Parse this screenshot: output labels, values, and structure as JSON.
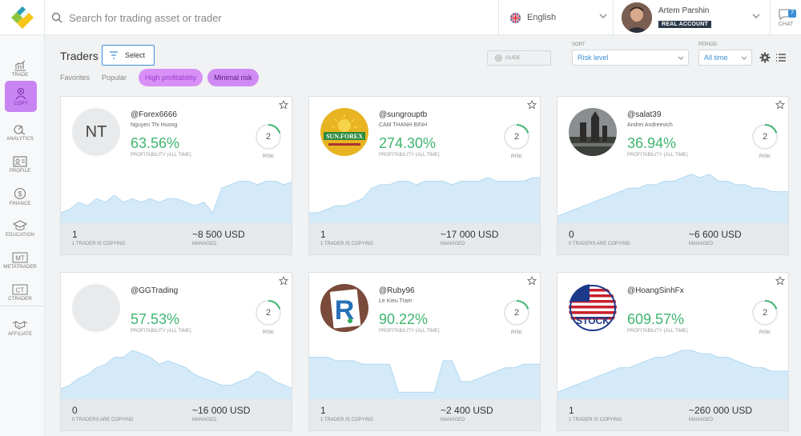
{
  "header": {
    "search_placeholder": "Search for trading asset or trader",
    "language": "English",
    "user_name": "Artem Parshin",
    "account_badge": "REAL ACCOUNT",
    "chat_label": "CHAT",
    "chat_count": "7"
  },
  "sidebar": {
    "items": [
      {
        "label": "TRADE",
        "icon": "trade-icon"
      },
      {
        "label": "COPY",
        "icon": "copy-icon",
        "active": true
      },
      {
        "label": "ANALYTICS",
        "icon": "analytics-icon"
      },
      {
        "label": "PROFILE",
        "icon": "profile-icon"
      },
      {
        "label": "FINANCE",
        "icon": "finance-icon"
      },
      {
        "label": "EDUCATION",
        "icon": "education-icon"
      },
      {
        "label": "METATRADER",
        "icon": "metatrader-icon",
        "badge": "MT"
      },
      {
        "label": "CTRADER",
        "icon": "ctrader-icon",
        "badge": "CT"
      },
      {
        "label": "AFFILIATE",
        "icon": "affiliate-icon"
      }
    ]
  },
  "toolbar": {
    "title": "Traders",
    "select_label": "Select",
    "filters": [
      "Favorites",
      "Popular"
    ],
    "chips": [
      "High profitability",
      "Minimal risk"
    ],
    "guide_label": "GUIDE",
    "sort_label": "SORT",
    "sort_value": "Risk level",
    "period_label": "PERIOD",
    "period_value": "All time"
  },
  "labels": {
    "profitability": "PROFITABILITY (ALL TIME)",
    "risk": "RISK",
    "managed": "MANAGED"
  },
  "colors": {
    "accent": "#3c8fd6",
    "profit": "#3fb56f",
    "chip": "#d08af4",
    "chart_fill": "#d4eaf8",
    "chart_line": "#b3d8f1"
  },
  "traders": [
    {
      "handle": "@Forex6666",
      "name": "Nguyen Thi Huong",
      "initials": "NT",
      "profit": "63.56%",
      "risk": "2",
      "copying": "1",
      "copying_label": "1 TRADER IS COPYING",
      "managed": "~8 500 USD",
      "series": [
        3,
        4,
        6,
        5,
        7,
        6,
        8,
        6,
        7,
        6,
        7,
        6,
        7,
        7,
        6,
        5,
        6,
        3,
        10,
        11,
        12,
        12,
        11,
        12,
        12,
        11,
        12
      ]
    },
    {
      "handle": "@sungrouptb",
      "name": "CAM THANH BINH",
      "avatar": "sunforex",
      "profit": "274.30%",
      "risk": "2",
      "copying": "1",
      "copying_label": "1 TRADER IS COPYING",
      "managed": "~17 000 USD",
      "series": [
        3,
        3,
        4,
        5,
        5,
        6,
        7,
        10,
        11,
        11,
        12,
        12,
        11,
        12,
        12,
        12,
        11,
        12,
        12,
        12,
        13,
        12,
        12,
        12,
        12,
        13,
        13
      ]
    },
    {
      "handle": "@salat39",
      "name": "Andrei Andreevich",
      "avatar": "photo-castle",
      "profit": "36.94%",
      "risk": "2",
      "copying": "0",
      "copying_label": "0 TRADERS ARE COPYING",
      "managed": "~6 600 USD",
      "series": [
        2,
        3,
        4,
        5,
        6,
        7,
        8,
        9,
        10,
        10,
        11,
        11,
        12,
        12,
        13,
        14,
        13,
        14,
        12,
        12,
        11,
        11,
        10,
        10,
        9,
        9,
        9
      ]
    },
    {
      "handle": "@GGTrading",
      "name": "",
      "avatar": "blank",
      "profit": "57.53%",
      "risk": "2",
      "copying": "0",
      "copying_label": "0 TRADERS ARE COPYING",
      "managed": "~16 000 USD",
      "series": [
        3,
        4,
        6,
        7,
        9,
        10,
        12,
        12,
        14,
        13,
        12,
        10,
        11,
        10,
        9,
        7,
        6,
        5,
        4,
        4,
        5,
        6,
        8,
        7,
        5,
        4,
        3
      ]
    },
    {
      "handle": "@Ruby96",
      "name": "Le Kieu Tram",
      "avatar": "letter-r",
      "profit": "90.22%",
      "risk": "2",
      "copying": "1",
      "copying_label": "1 TRADER IS COPYING",
      "managed": "~2 400 USD",
      "series": [
        12,
        12,
        12,
        11,
        11,
        11,
        10,
        10,
        10,
        10,
        2,
        2,
        2,
        2,
        2,
        11,
        11,
        5,
        5,
        6,
        7,
        8,
        9,
        9,
        10,
        10,
        10
      ]
    },
    {
      "handle": "@HoangSinhFx",
      "name": "",
      "avatar": "stock",
      "profit": "609.57%",
      "risk": "2",
      "copying": "1",
      "copying_label": "1 TRADER IS COPYING",
      "managed": "~260 000 USD",
      "series": [
        2,
        3,
        4,
        5,
        6,
        7,
        8,
        9,
        9,
        10,
        11,
        12,
        12,
        13,
        14,
        14,
        13,
        13,
        12,
        12,
        11,
        10,
        9,
        9,
        8,
        8,
        8
      ]
    }
  ]
}
